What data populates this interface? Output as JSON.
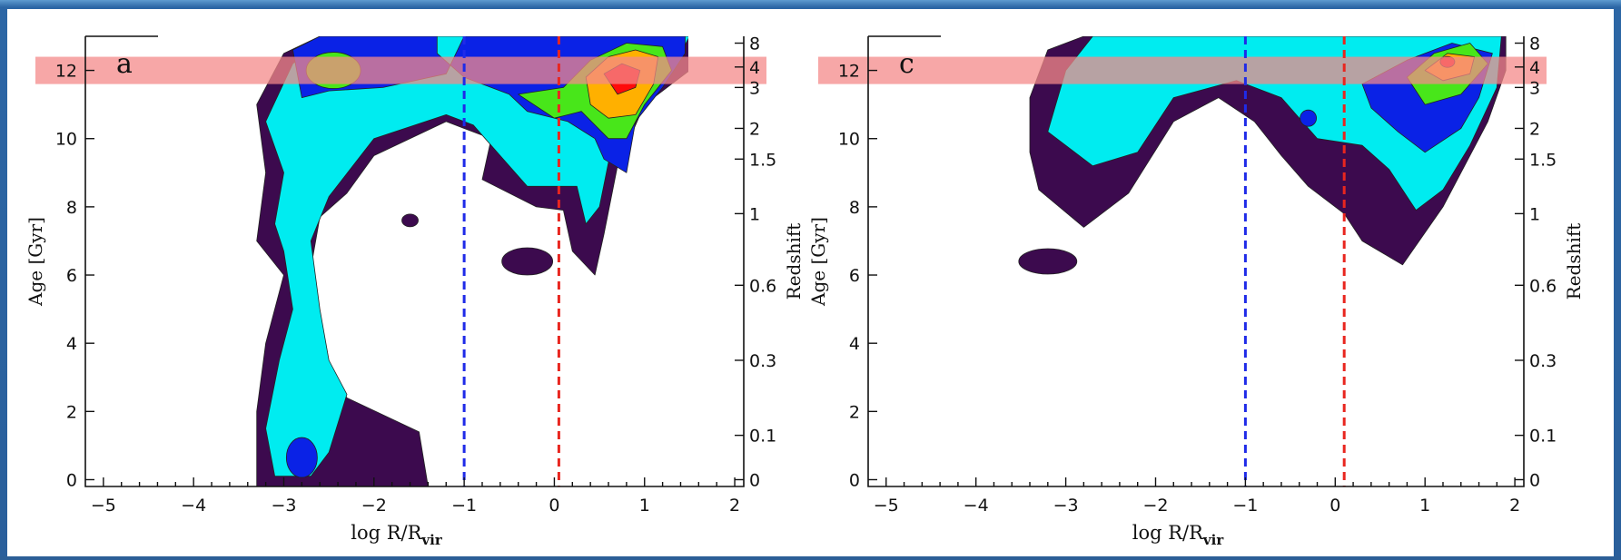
{
  "chart_data": [
    {
      "type": "heatmap",
      "panel_label": "a",
      "xlabel_main": "log R/R",
      "xlabel_sub": "vir",
      "ylabel": "Age [Gyr]",
      "y2label": "Redshift",
      "xlim": [
        -5.2,
        2.1
      ],
      "ylim": [
        -0.2,
        13.0
      ],
      "xticks": [
        -5,
        -4,
        -3,
        -2,
        -1,
        0,
        1,
        2
      ],
      "yticks": [
        0,
        2,
        4,
        6,
        8,
        10,
        12
      ],
      "redshift_ticks": [
        {
          "label": "0",
          "age": 0
        },
        {
          "label": "0.1",
          "age": 1.3
        },
        {
          "label": "0.3",
          "age": 3.5
        },
        {
          "label": "0.6",
          "age": 5.7
        },
        {
          "label": "1",
          "age": 7.8
        },
        {
          "label": "1.5",
          "age": 9.4
        },
        {
          "label": "2",
          "age": 10.3
        },
        {
          "label": "3",
          "age": 11.5
        },
        {
          "label": "4",
          "age": 12.1
        },
        {
          "label": "8",
          "age": 12.8
        }
      ],
      "vlines": [
        {
          "x": -1.0,
          "color": "#1f2be8"
        },
        {
          "x": 0.05,
          "color": "#e8261f"
        }
      ],
      "hband": {
        "y": [
          11.6,
          12.4
        ],
        "color": "#f48a8a"
      },
      "density_peaks": [
        {
          "x": -2.4,
          "y": 12.0,
          "level": 3
        },
        {
          "x": 0.8,
          "y": 11.8,
          "level": 5
        },
        {
          "x": -2.8,
          "y": 0.6,
          "level": 2
        },
        {
          "x": -0.3,
          "y": 7.5,
          "level": 2
        }
      ]
    },
    {
      "type": "heatmap",
      "panel_label": "c",
      "xlabel_main": "log R/R",
      "xlabel_sub": "vir",
      "ylabel": "Age [Gyr]",
      "y2label": "Redshift",
      "xlim": [
        -5.2,
        2.1
      ],
      "ylim": [
        -0.2,
        13.0
      ],
      "xticks": [
        -5,
        -4,
        -3,
        -2,
        -1,
        0,
        1,
        2
      ],
      "yticks": [
        0,
        2,
        4,
        6,
        8,
        10,
        12
      ],
      "redshift_ticks": [
        {
          "label": "0",
          "age": 0
        },
        {
          "label": "0.1",
          "age": 1.3
        },
        {
          "label": "0.3",
          "age": 3.5
        },
        {
          "label": "0.6",
          "age": 5.7
        },
        {
          "label": "1",
          "age": 7.8
        },
        {
          "label": "1.5",
          "age": 9.4
        },
        {
          "label": "2",
          "age": 10.3
        },
        {
          "label": "3",
          "age": 11.5
        },
        {
          "label": "4",
          "age": 12.1
        },
        {
          "label": "8",
          "age": 12.8
        }
      ],
      "vlines": [
        {
          "x": -1.0,
          "color": "#1f2be8"
        },
        {
          "x": 0.1,
          "color": "#e8261f"
        }
      ],
      "hband": {
        "y": [
          11.6,
          12.4
        ],
        "color": "#f48a8a"
      },
      "density_peaks": [
        {
          "x": 1.25,
          "y": 12.2,
          "level": 5
        },
        {
          "x": 1.0,
          "y": 10.5,
          "level": 2
        }
      ]
    }
  ],
  "colors": {
    "level1": "#3c0a4e",
    "level2": "#00ecf0",
    "level3": "#0a22e6",
    "level4": "#48e61a",
    "level5": "#ffb000",
    "level6": "#ff0a0a",
    "frame": "#2c5f97"
  }
}
